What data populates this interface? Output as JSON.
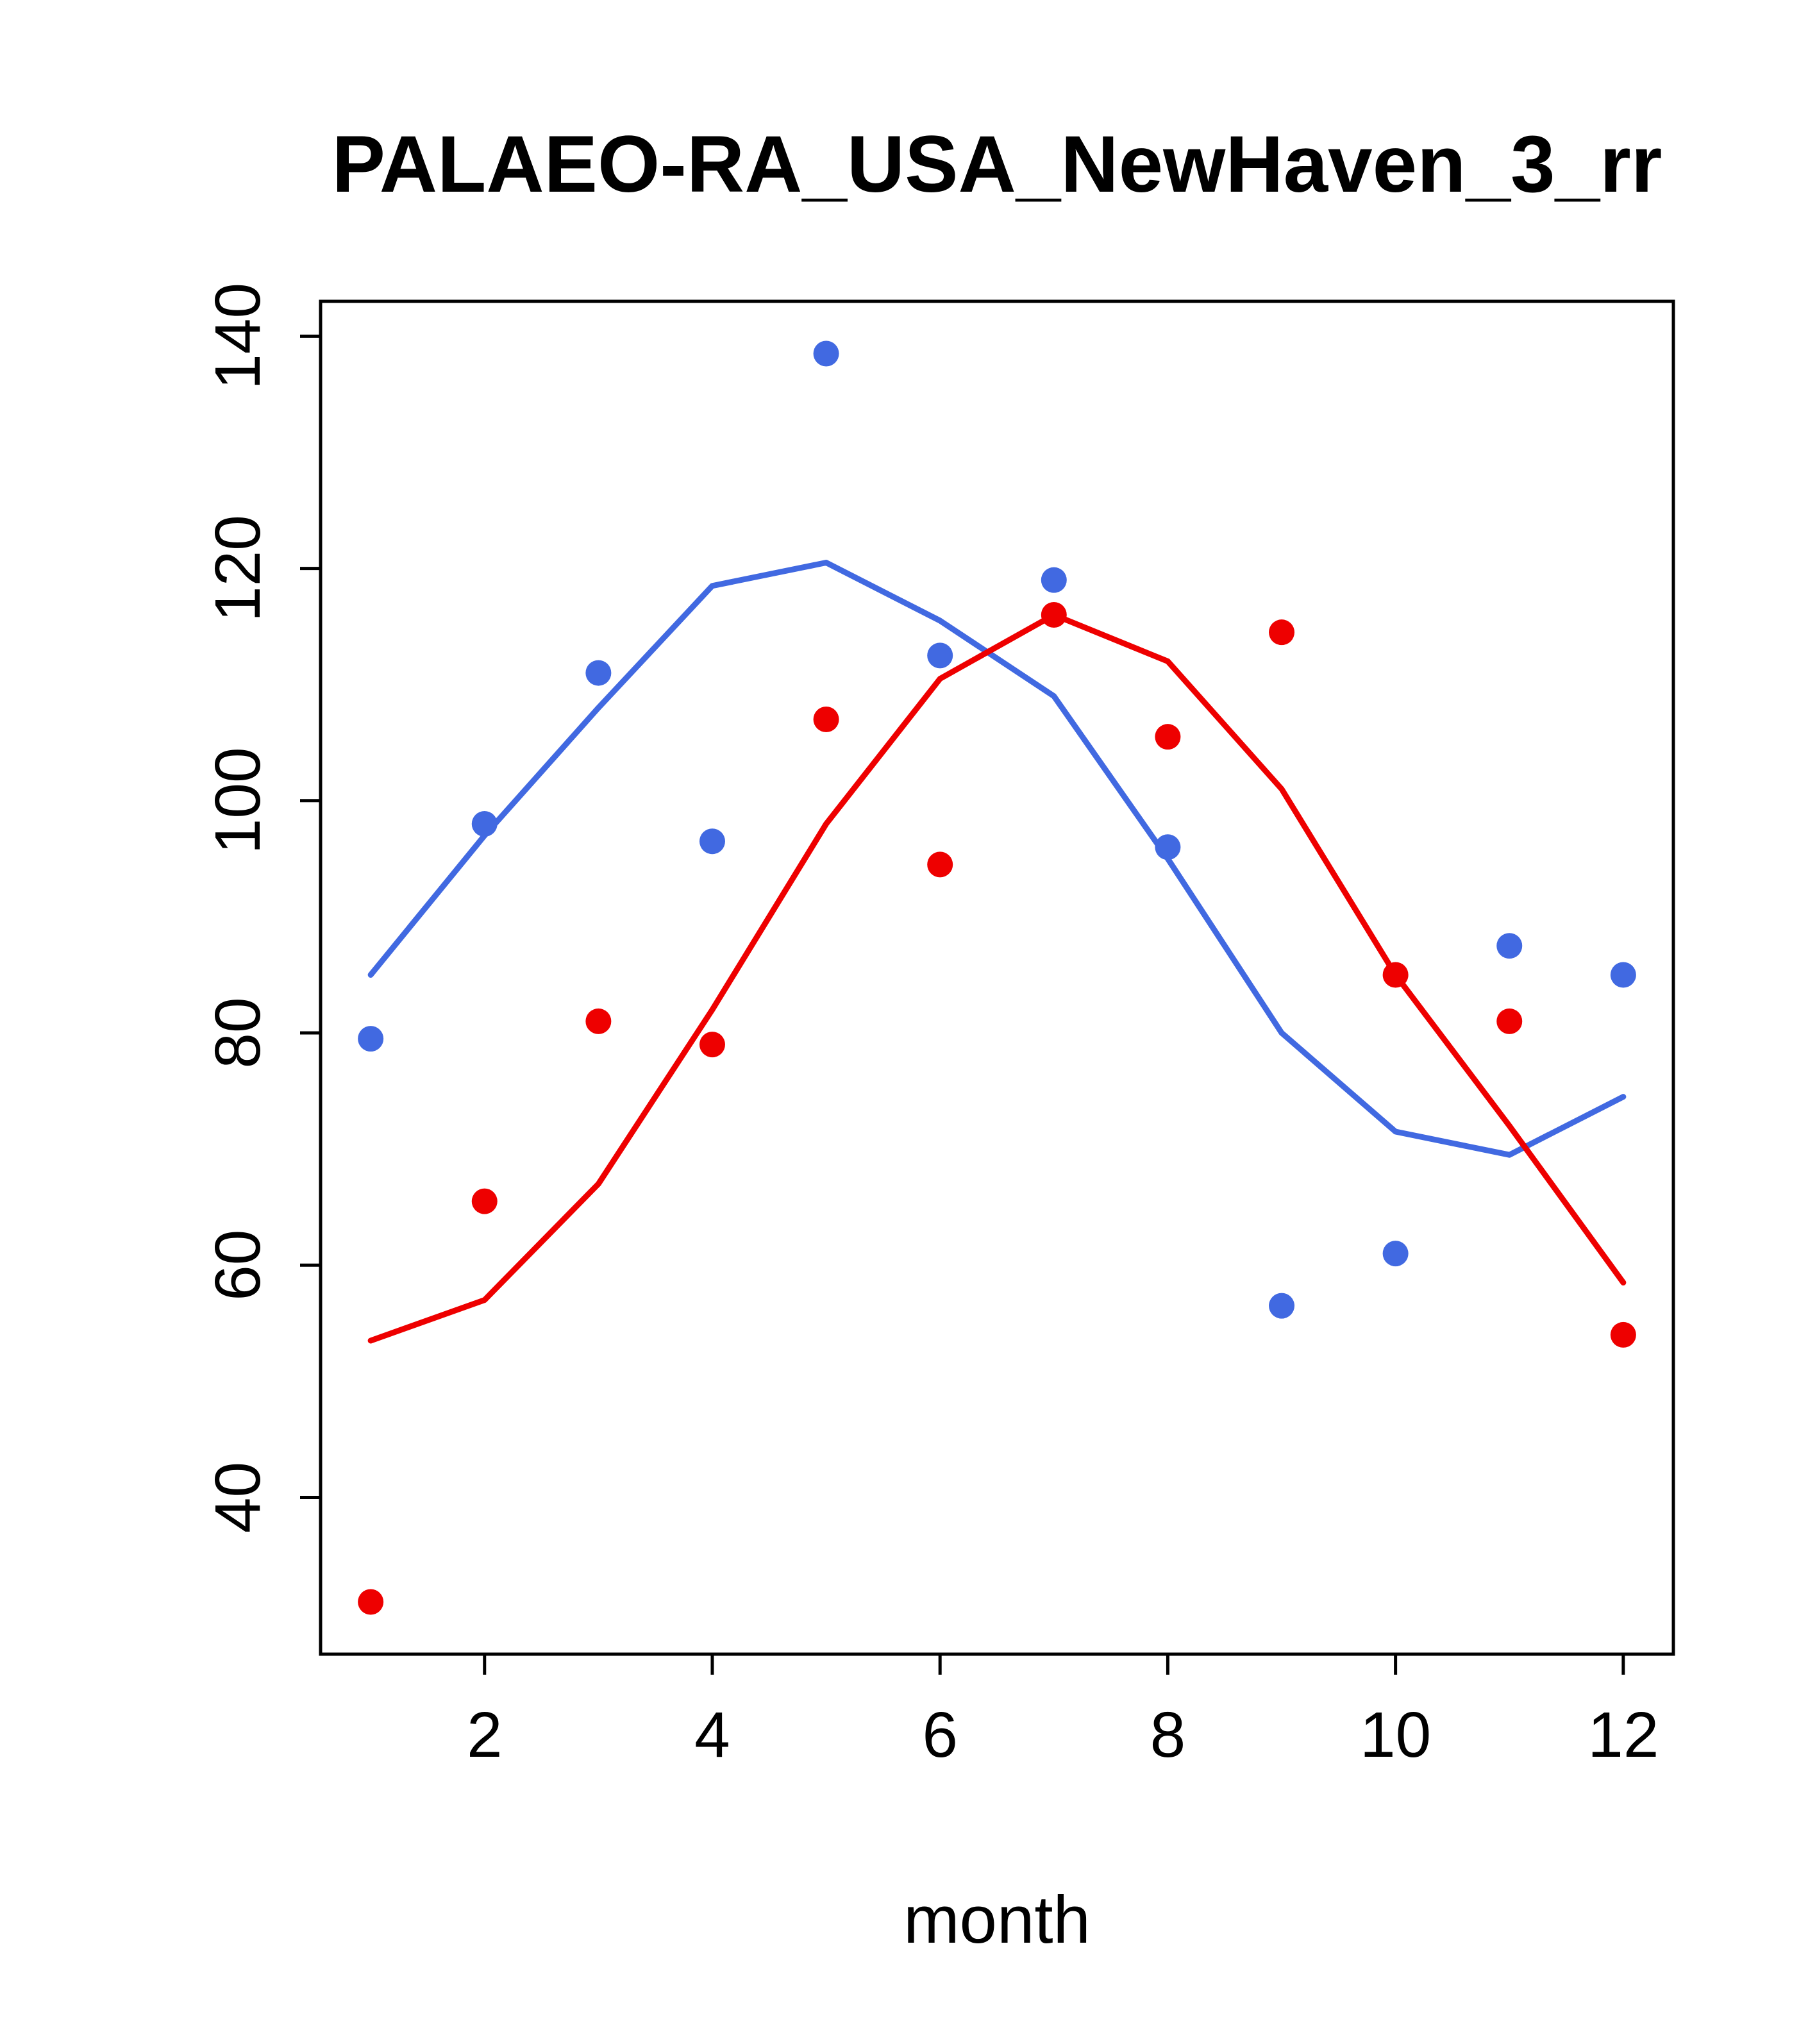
{
  "chart_data": {
    "type": "scatter",
    "title": "PALAEO-RA_USA_NewHaven_3_rr",
    "xlabel": "month",
    "ylabel": "",
    "x": [
      1,
      2,
      3,
      4,
      5,
      6,
      7,
      8,
      9,
      10,
      11,
      12
    ],
    "xticks": [
      2,
      4,
      6,
      8,
      10,
      12
    ],
    "yticks": [
      40,
      60,
      80,
      100,
      120,
      140
    ],
    "xlim": [
      0.56,
      12.44
    ],
    "ylim": [
      26.5,
      143
    ],
    "grid": false,
    "legend": "none",
    "colors": {
      "series1": "#4169E1",
      "series2": "#EE0000",
      "axis": "#000000"
    },
    "series": [
      {
        "name": "series1-points",
        "kind": "points",
        "color_key": "series1",
        "values": [
          79.5,
          98,
          111,
          96.5,
          138.5,
          112.5,
          119,
          96,
          56.5,
          61,
          87.5,
          85
        ]
      },
      {
        "name": "series1-line",
        "kind": "line",
        "color_key": "series1",
        "values": [
          85,
          97,
          108,
          118.5,
          120.5,
          115.5,
          109,
          95,
          80,
          71.5,
          69.5,
          74.5
        ]
      },
      {
        "name": "series2-points",
        "kind": "points",
        "color_key": "series2",
        "values": [
          31,
          65.5,
          81,
          79,
          107,
          94.5,
          116,
          105.5,
          114.5,
          85,
          81,
          54
        ]
      },
      {
        "name": "series2-line",
        "kind": "line",
        "color_key": "series2",
        "values": [
          53.5,
          57,
          67,
          82,
          98,
          110.5,
          116,
          112,
          101,
          85,
          72,
          58.5
        ]
      }
    ]
  }
}
